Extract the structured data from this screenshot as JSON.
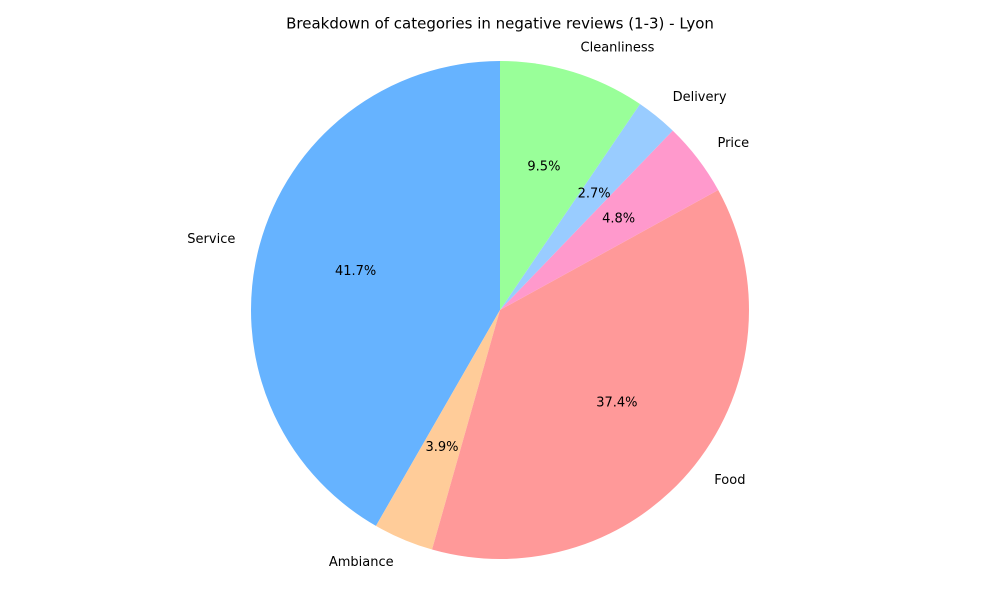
{
  "chart_data": {
    "type": "pie",
    "title": "Breakdown of categories in negative reviews (1-3) - Lyon",
    "categories": [
      "Service",
      "Ambiance",
      "Food",
      "Price",
      "Delivery",
      "Cleanliness"
    ],
    "values": [
      41.7,
      3.9,
      37.4,
      4.8,
      2.7,
      9.5
    ],
    "value_labels": [
      "41.7%",
      "3.9%",
      "37.4%",
      "4.8%",
      "2.7%",
      "9.5%"
    ],
    "colors": [
      "#66b3ff",
      "#ffcc99",
      "#ff9999",
      "#ff99cc",
      "#99ccff",
      "#99ff99"
    ]
  }
}
